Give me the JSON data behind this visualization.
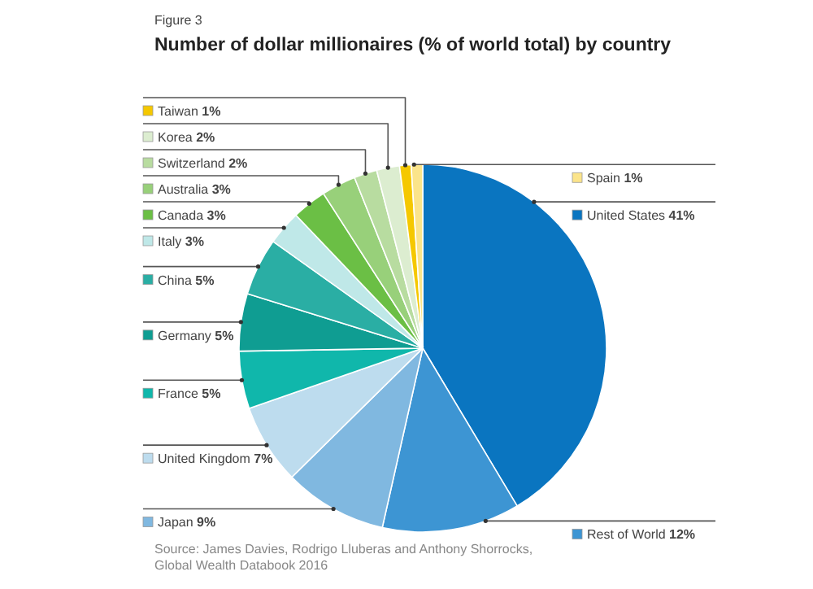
{
  "chart_data": {
    "type": "pie",
    "subtitle": "Figure 3",
    "title": "Number of dollar millionaires (% of world total) by country",
    "categories": [
      "United States",
      "Rest of World",
      "Japan",
      "United Kingdom",
      "France",
      "Germany",
      "China",
      "Italy",
      "Canada",
      "Australia",
      "Switzerland",
      "Korea",
      "Taiwan",
      "Spain"
    ],
    "values": [
      41,
      12,
      9,
      7,
      5,
      5,
      5,
      3,
      3,
      3,
      2,
      2,
      1,
      1
    ],
    "value_labels": [
      "41%",
      "12%",
      "9%",
      "7%",
      "5%",
      "5%",
      "5%",
      "3%",
      "3%",
      "3%",
      "2%",
      "2%",
      "1%",
      "1%"
    ],
    "colors": [
      "#0a75c0",
      "#3d95d3",
      "#80b8e0",
      "#bddcee",
      "#10b7ab",
      "#0f9d92",
      "#2aaea4",
      "#bfe8e8",
      "#6bbf45",
      "#98d07a",
      "#b8dca0",
      "#dcedd0",
      "#f5c800",
      "#fbe48a"
    ],
    "legend": "left",
    "annotations": [
      "Source: James Davies, Rodrigo Lluberas and Anthony Shorrocks, Global Wealth Databook 2016"
    ]
  }
}
